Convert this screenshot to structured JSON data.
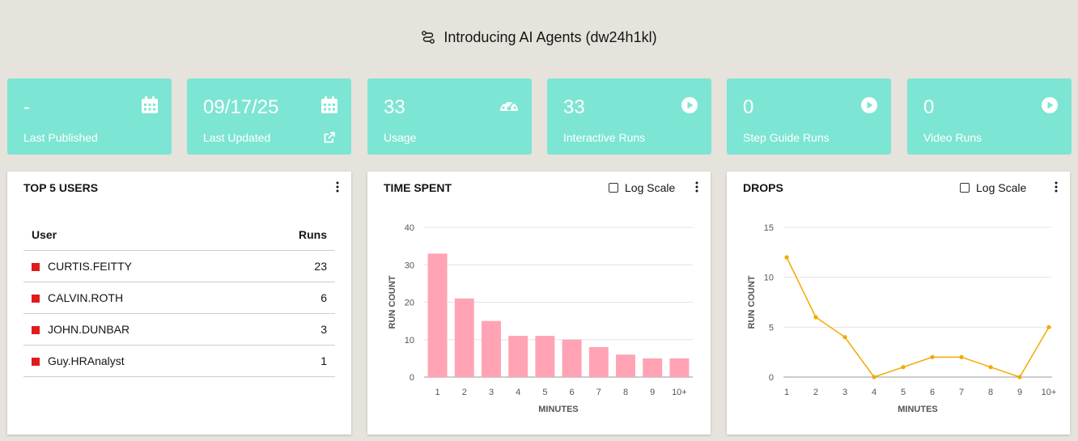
{
  "header": {
    "title": "Introducing AI Agents (dw24h1kl)",
    "icon": "route-icon"
  },
  "kpis": [
    {
      "value": "-",
      "label": "Last Published",
      "icon": "calendar-icon"
    },
    {
      "value": "09/17/25",
      "label": "Last Updated",
      "icon": "calendar-icon",
      "link_icon": "external-link-icon"
    },
    {
      "value": "33",
      "label": "Usage",
      "icon": "gauge-icon"
    },
    {
      "value": "33",
      "label": "Interactive Runs",
      "icon": "play-circle-icon"
    },
    {
      "value": "0",
      "label": "Step Guide Runs",
      "icon": "play-circle-icon"
    },
    {
      "value": "0",
      "label": "Video Runs",
      "icon": "play-circle-icon"
    }
  ],
  "top_users": {
    "title": "TOP 5 USERS",
    "col_user": "User",
    "col_runs": "Runs",
    "rows": [
      {
        "user": "CURTIS.FEITTY",
        "runs": "23"
      },
      {
        "user": "CALVIN.ROTH",
        "runs": "6"
      },
      {
        "user": "JOHN.DUNBAR",
        "runs": "3"
      },
      {
        "user": "Guy.HRAnalyst",
        "runs": "1"
      }
    ],
    "swatch_color": "#e01b1b"
  },
  "time_spent": {
    "title": "TIME SPENT",
    "log_scale_label": "Log Scale"
  },
  "drops": {
    "title": "DROPS",
    "log_scale_label": "Log Scale"
  },
  "chart_data": [
    {
      "type": "bar",
      "title": "TIME SPENT",
      "categories": [
        "1",
        "2",
        "3",
        "4",
        "5",
        "6",
        "7",
        "8",
        "9",
        "10+"
      ],
      "values": [
        33,
        21,
        15,
        11,
        11,
        10,
        8,
        6,
        5,
        5
      ],
      "xlabel": "MINUTES",
      "ylabel": "RUN COUNT",
      "ylim": [
        0,
        40
      ],
      "yticks": [
        0,
        10,
        20,
        30,
        40
      ],
      "grid": true,
      "color": "#ffa3b5"
    },
    {
      "type": "line",
      "title": "DROPS",
      "categories": [
        "1",
        "2",
        "3",
        "4",
        "5",
        "6",
        "7",
        "8",
        "9",
        "10+"
      ],
      "values": [
        12,
        6,
        4,
        0,
        1,
        2,
        2,
        1,
        0,
        5
      ],
      "xlabel": "MINUTES",
      "ylabel": "RUN COUNT",
      "ylim": [
        0,
        15
      ],
      "yticks": [
        0,
        5,
        10,
        15
      ],
      "grid": true,
      "color": "#f2a900"
    }
  ]
}
